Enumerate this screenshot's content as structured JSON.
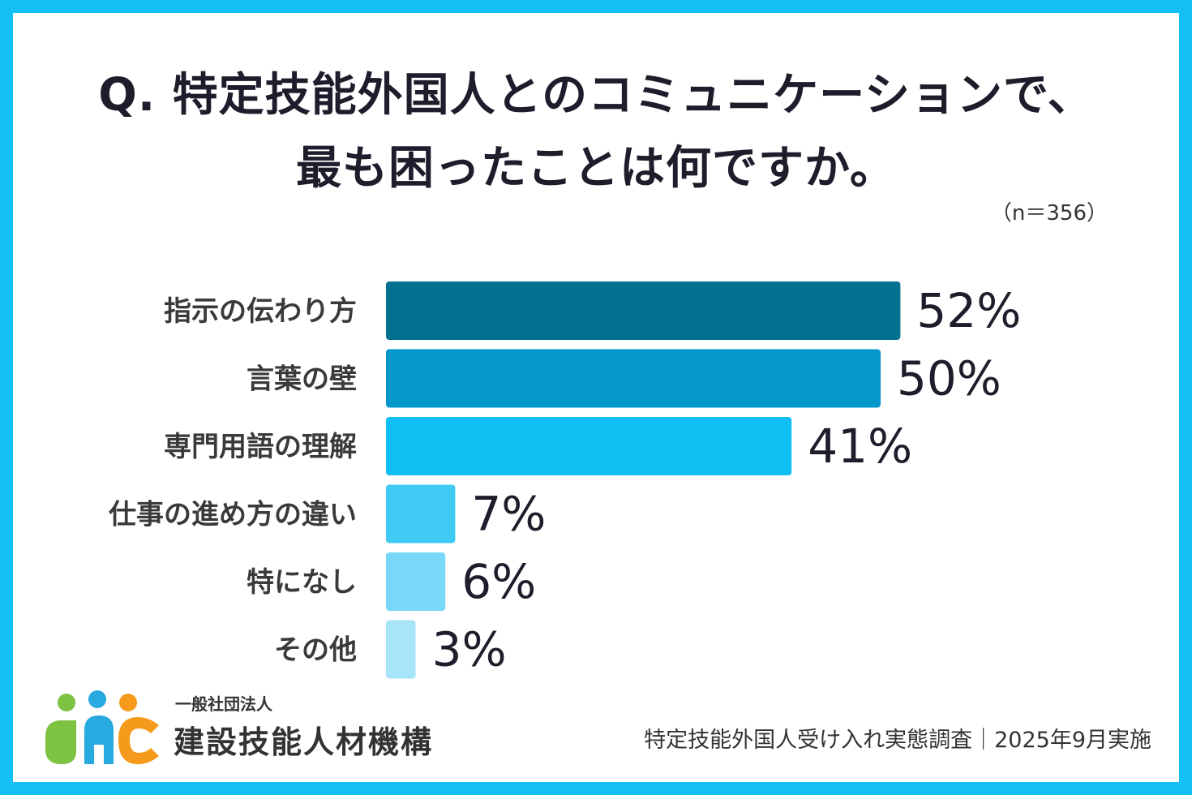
{
  "chart_data": {
    "type": "bar",
    "orientation": "horizontal",
    "title_line1": "Q. 特定技能外国人とのコミュニケーションで、",
    "title_line2": "最も困ったことは何ですか。",
    "note": "（n＝356）",
    "categories": [
      "指示の伝わり方",
      "言葉の壁",
      "専門用語の理解",
      "仕事の進め方の違い",
      "特になし",
      "その他"
    ],
    "values": [
      52,
      50,
      41,
      7,
      6,
      3
    ],
    "value_labels": [
      "52%",
      "50%",
      "41%",
      "7%",
      "6%",
      "3%"
    ],
    "bar_colors": [
      "#02708f",
      "#0397cc",
      "#0fbef2",
      "#3fcaf5",
      "#78d8f7",
      "#a8e5f9"
    ],
    "xlim": [
      0,
      100
    ],
    "grid": false,
    "legend": "none"
  },
  "logo": {
    "org_type": "一般社団法人",
    "org_name": "建設技能人材機構",
    "colors": [
      "#7dc241",
      "#28a9e0",
      "#f59a1b"
    ]
  },
  "source": "特定技能外国人受け入れ実態調査｜2025年9月実施",
  "theme": {
    "frame": "#14bff5",
    "text": "#1d1d2b"
  }
}
